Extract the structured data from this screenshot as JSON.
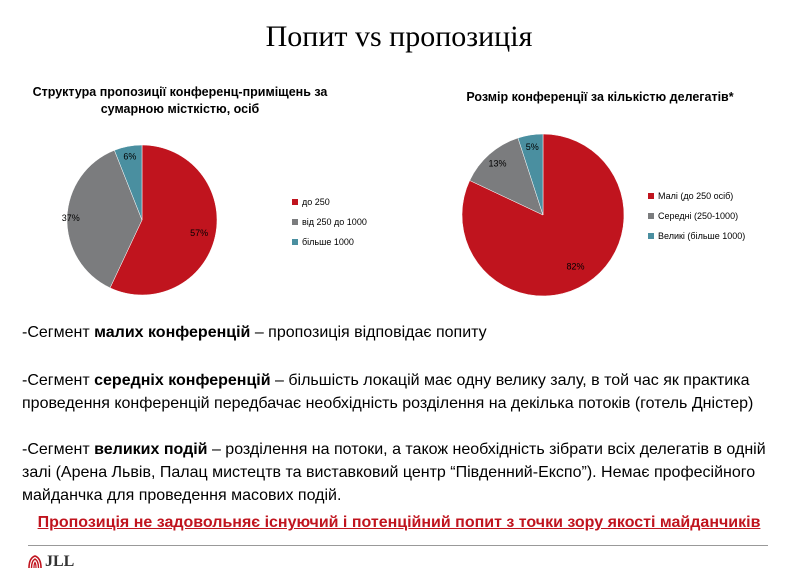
{
  "slide": {
    "title": "Попит vs пропозиція"
  },
  "chart_data": [
    {
      "type": "pie",
      "title": "Структура пропозиції конференц-приміщень за сумарною місткістю, осіб",
      "categories": [
        "до 250",
        "від 250 до 1000",
        "більше 1000"
      ],
      "values": [
        57,
        37,
        6
      ],
      "value_labels": [
        "57%",
        "37%",
        "6%"
      ],
      "colors": [
        "#c0141e",
        "#7b7c7e",
        "#4a8fa0"
      ],
      "legend_placement": "right"
    },
    {
      "type": "pie",
      "title": "Розмір конференції за кількістю делегатів*",
      "categories": [
        "Малі (до 250 осіб)",
        "Середні (250-1000)",
        "Великі (більше 1000)"
      ],
      "values": [
        82,
        13,
        5
      ],
      "value_labels": [
        "82%",
        "13%",
        "5%"
      ],
      "colors": [
        "#c0141e",
        "#7b7c7e",
        "#4a8fa0"
      ],
      "legend_placement": "right"
    }
  ],
  "text": {
    "para1": {
      "prefix": "-Сегмент ",
      "bold": "малих конференцій",
      "rest": " – пропозиція відповідає попиту"
    },
    "para2": {
      "prefix": "-Сегмент ",
      "bold": "середніх конференцій",
      "rest": " – більшість локацій має одну велику залу, в той час як практика проведення конференцій передбачає необхідність розділення на декілька потоків (готель Дністер)"
    },
    "para3": {
      "prefix": "-Сегмент ",
      "bold": "великих подій",
      "rest": " – розділення на потоки, а також необхідність зібрати всіх делегатів в одній залі (Арена Львів, Палац мистецтв та виставковий центр “Південний-Експо”). Немає професійного майданчка для проведення масових подій."
    },
    "conclusion": "Пропозиція не задовольняє існуючий і потенційний попит з точки зору якості майданчиків"
  },
  "logo": {
    "text": "JLL"
  }
}
